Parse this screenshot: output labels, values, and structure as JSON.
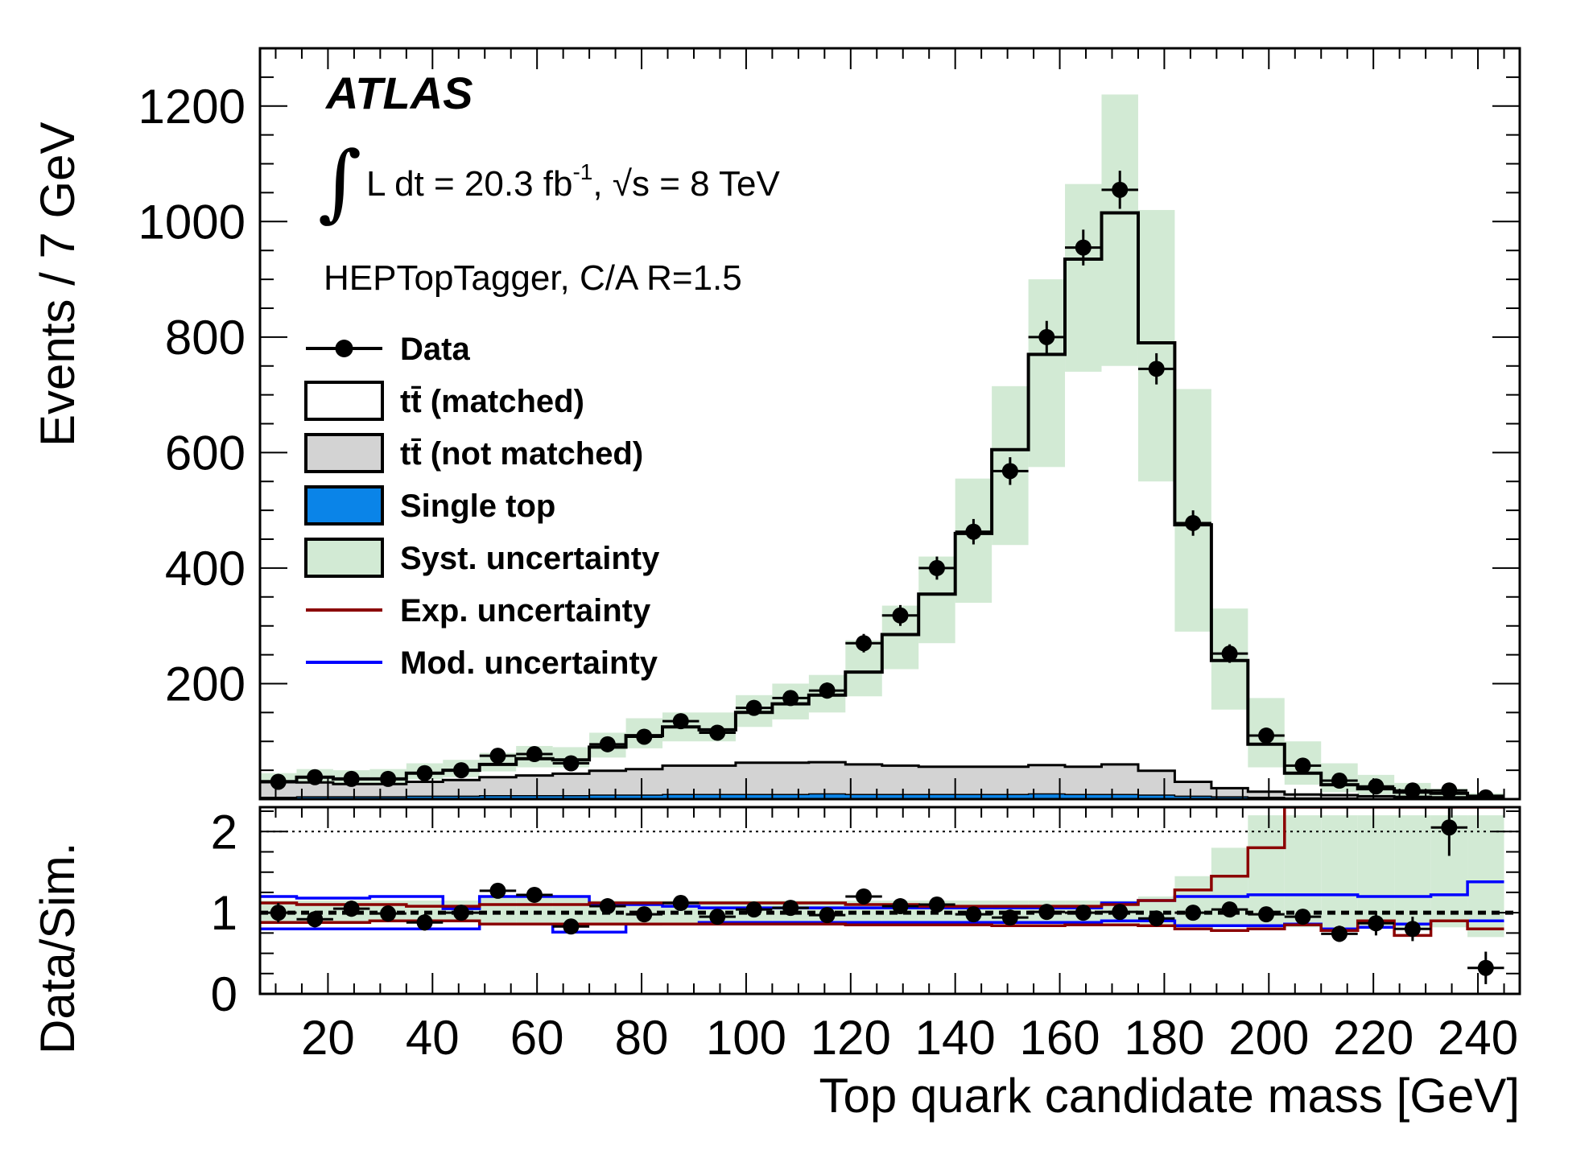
{
  "chart_data": [
    {
      "type": "bar",
      "panel": "main",
      "ylabel": "Events / 7 GeV",
      "ylim": [
        0,
        1300
      ],
      "xlim": [
        7,
        248
      ],
      "yticks": [
        200,
        400,
        600,
        800,
        1000,
        1200
      ],
      "x_centers": [
        10.5,
        17.5,
        24.5,
        31.5,
        38.5,
        45.5,
        52.5,
        59.5,
        66.5,
        73.5,
        80.5,
        87.5,
        94.5,
        101.5,
        108.5,
        115.5,
        122.5,
        129.5,
        136.5,
        143.5,
        150.5,
        157.5,
        164.5,
        171.5,
        178.5,
        185.5,
        192.5,
        199.5,
        206.5,
        213.5,
        220.5,
        227.5,
        234.5,
        241.5
      ],
      "bin_width": 7,
      "annotations": {
        "experiment": "ATLAS",
        "lumi_label": "L dt = 20.3 fb",
        "lumi_exponent": "-1",
        "energy_label": ", √s = 8 TeV",
        "tagger": "HEPTopTagger, C/A R=1.5"
      },
      "legend": [
        {
          "label": "Data",
          "style": "marker"
        },
        {
          "label": "tt̄ (matched)",
          "style": "box",
          "fill": "#ffffff"
        },
        {
          "label": "tt̄ (not matched)",
          "style": "box",
          "fill": "#d3d3d3"
        },
        {
          "label": "Single top",
          "style": "box",
          "fill": "#0a84e8"
        },
        {
          "label": "Syst. uncertainty",
          "style": "box",
          "fill": "#d2ead4"
        },
        {
          "label": "Exp. uncertainty",
          "style": "line",
          "color": "#8b0000"
        },
        {
          "label": "Mod. uncertainty",
          "style": "line",
          "color": "#0000ff"
        }
      ],
      "series": [
        {
          "name": "Data",
          "values": [
            30,
            38,
            35,
            35,
            45,
            50,
            75,
            78,
            62,
            95,
            108,
            135,
            115,
            158,
            175,
            188,
            270,
            318,
            400,
            463,
            568,
            800,
            955,
            1055,
            745,
            478,
            252,
            110,
            58,
            32,
            22,
            15,
            15,
            3
          ],
          "errors": [
            6,
            6,
            6,
            6,
            7,
            7,
            9,
            9,
            8,
            10,
            10,
            12,
            11,
            13,
            13,
            14,
            16,
            18,
            20,
            22,
            24,
            28,
            31,
            33,
            27,
            22,
            16,
            11,
            8,
            6,
            5,
            4,
            4,
            2
          ]
        },
        {
          "name": "tt̄ (matched)",
          "values": [
            30,
            38,
            35,
            35,
            45,
            50,
            60,
            70,
            68,
            90,
            110,
            125,
            120,
            150,
            165,
            180,
            220,
            285,
            355,
            460,
            605,
            770,
            935,
            1015,
            790,
            475,
            240,
            95,
            45,
            25,
            18,
            12,
            10,
            5
          ]
        },
        {
          "name": "tt̄ (not matched)",
          "values": [
            28,
            25,
            22,
            22,
            25,
            28,
            32,
            35,
            38,
            42,
            45,
            50,
            50,
            55,
            55,
            55,
            52,
            50,
            48,
            48,
            48,
            50,
            48,
            52,
            42,
            25,
            15,
            10,
            6,
            5,
            4,
            3,
            2,
            2
          ]
        },
        {
          "name": "Single top",
          "values": [
            3,
            4,
            4,
            4,
            5,
            5,
            6,
            6,
            6,
            7,
            7,
            8,
            8,
            8,
            8,
            9,
            8,
            8,
            8,
            8,
            8,
            9,
            8,
            8,
            7,
            5,
            4,
            3,
            2,
            2,
            1,
            1,
            1,
            1
          ]
        },
        {
          "name": "Syst. uncertainty",
          "low": [
            22,
            22,
            24,
            26,
            34,
            38,
            48,
            55,
            55,
            72,
            88,
            100,
            100,
            125,
            138,
            150,
            178,
            225,
            270,
            340,
            440,
            575,
            740,
            750,
            550,
            290,
            155,
            55,
            25,
            12,
            8,
            5,
            3,
            1
          ],
          "high": [
            45,
            52,
            50,
            52,
            62,
            68,
            80,
            92,
            90,
            115,
            140,
            150,
            150,
            180,
            200,
            215,
            275,
            335,
            420,
            555,
            715,
            900,
            1065,
            1220,
            1020,
            710,
            330,
            175,
            100,
            62,
            42,
            28,
            18,
            10
          ]
        }
      ]
    },
    {
      "type": "line",
      "panel": "ratio",
      "ylabel": "Data/Sim.",
      "xlabel": "Top quark candidate mass [GeV]",
      "ylim": [
        0,
        2.3
      ],
      "xlim": [
        7,
        248
      ],
      "yticks": [
        0,
        1,
        2
      ],
      "xticks": [
        20,
        40,
        60,
        80,
        100,
        120,
        140,
        160,
        180,
        200,
        220,
        240
      ],
      "reference_lines": [
        1,
        2
      ],
      "series": [
        {
          "name": "Data",
          "x": [
            10.5,
            17.5,
            24.5,
            31.5,
            38.5,
            45.5,
            52.5,
            59.5,
            66.5,
            73.5,
            80.5,
            87.5,
            94.5,
            101.5,
            108.5,
            115.5,
            122.5,
            129.5,
            136.5,
            143.5,
            150.5,
            157.5,
            164.5,
            171.5,
            178.5,
            185.5,
            192.5,
            199.5,
            206.5,
            213.5,
            220.5,
            227.5,
            234.5,
            241.5
          ],
          "values": [
            1.0,
            0.92,
            1.05,
            0.99,
            0.88,
            1.0,
            1.27,
            1.22,
            0.83,
            1.08,
            0.98,
            1.12,
            0.95,
            1.04,
            1.06,
            0.97,
            1.2,
            1.08,
            1.1,
            0.98,
            0.94,
            1.01,
            1.0,
            1.01,
            0.93,
            1.0,
            1.04,
            0.98,
            0.95,
            0.74,
            0.87,
            0.8,
            2.05,
            0.32
          ],
          "errors": [
            0.12,
            0.1,
            0.1,
            0.1,
            0.1,
            0.09,
            0.08,
            0.08,
            0.08,
            0.07,
            0.06,
            0.06,
            0.06,
            0.05,
            0.05,
            0.05,
            0.04,
            0.04,
            0.03,
            0.03,
            0.03,
            0.03,
            0.03,
            0.03,
            0.03,
            0.03,
            0.04,
            0.05,
            0.08,
            0.1,
            0.15,
            0.15,
            0.35,
            0.2
          ]
        },
        {
          "name": "Syst. uncertainty",
          "low": [
            0.88,
            0.88,
            0.88,
            0.88,
            0.88,
            0.88,
            0.86,
            0.85,
            0.85,
            0.84,
            0.84,
            0.85,
            0.86,
            0.86,
            0.86,
            0.86,
            0.86,
            0.86,
            0.87,
            0.87,
            0.87,
            0.87,
            0.87,
            0.87,
            0.86,
            0.82,
            0.82,
            0.82,
            0.82,
            0.82,
            0.82,
            0.82,
            0.82,
            0.7
          ],
          "high": [
            1.15,
            1.15,
            1.15,
            1.15,
            1.15,
            1.15,
            1.2,
            1.2,
            1.2,
            1.15,
            1.15,
            1.15,
            1.15,
            1.15,
            1.15,
            1.15,
            1.15,
            1.15,
            1.15,
            1.15,
            1.15,
            1.15,
            1.15,
            1.15,
            1.2,
            1.45,
            1.8,
            2.2,
            2.2,
            2.2,
            2.2,
            2.2,
            2.2,
            2.2
          ]
        },
        {
          "name": "Exp. uncertainty",
          "color": "#8b0000",
          "low": [
            0.88,
            0.88,
            0.88,
            0.9,
            0.9,
            0.9,
            0.86,
            0.86,
            0.86,
            0.86,
            0.86,
            0.86,
            0.86,
            0.86,
            0.86,
            0.86,
            0.85,
            0.85,
            0.85,
            0.85,
            0.84,
            0.84,
            0.85,
            0.85,
            0.84,
            0.8,
            0.78,
            0.8,
            0.85,
            0.78,
            0.9,
            0.72,
            0.9,
            0.8
          ],
          "high": [
            1.12,
            1.1,
            1.1,
            1.1,
            1.08,
            1.08,
            1.1,
            1.1,
            1.1,
            1.12,
            1.12,
            1.12,
            1.12,
            1.12,
            1.12,
            1.12,
            1.1,
            1.1,
            1.08,
            1.08,
            1.08,
            1.08,
            1.08,
            1.1,
            1.15,
            1.28,
            1.45,
            1.8,
            2.3,
            2.3,
            2.3,
            2.3,
            2.3,
            2.3
          ]
        },
        {
          "name": "Mod. uncertainty",
          "color": "#0000ff",
          "low": [
            0.8,
            0.8,
            0.8,
            0.8,
            0.8,
            0.8,
            0.86,
            0.86,
            0.76,
            0.76,
            0.86,
            0.86,
            0.88,
            0.88,
            0.88,
            0.88,
            0.88,
            0.88,
            0.88,
            0.88,
            0.88,
            0.88,
            0.88,
            0.9,
            0.9,
            0.84,
            0.84,
            0.84,
            0.86,
            0.8,
            0.82,
            0.86,
            0.9,
            0.9
          ],
          "high": [
            1.2,
            1.18,
            1.18,
            1.2,
            1.2,
            1.05,
            1.2,
            1.2,
            1.2,
            1.1,
            1.1,
            1.08,
            1.06,
            1.06,
            1.06,
            1.06,
            1.06,
            1.06,
            1.06,
            1.06,
            1.06,
            1.06,
            1.06,
            1.12,
            1.15,
            1.2,
            1.2,
            1.22,
            1.22,
            1.22,
            1.2,
            1.2,
            1.22,
            1.38
          ]
        }
      ]
    }
  ]
}
